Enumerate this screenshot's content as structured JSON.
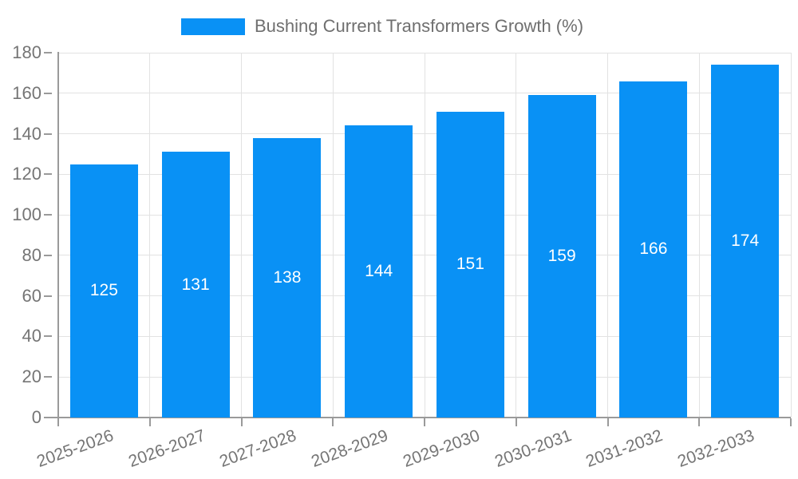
{
  "chart_data": {
    "type": "bar",
    "legend": "Bushing Current Transformers Growth (%)",
    "categories": [
      "2025-2026",
      "2026-2027",
      "2027-2028",
      "2028-2029",
      "2029-2030",
      "2030-2031",
      "2031-2032",
      "2032-2033"
    ],
    "values": [
      125,
      131,
      138,
      144,
      151,
      159,
      166,
      174
    ],
    "ylim": [
      0,
      180
    ],
    "yticks": [
      0,
      20,
      40,
      60,
      80,
      100,
      120,
      140,
      160,
      180
    ],
    "grid": true,
    "legend_position": "top-center",
    "value_label_position": "inside-middle",
    "x_label_rotation_deg": -20,
    "colors": {
      "bar": "#0991f5",
      "value_label": "#ffffff",
      "tick_text": "#757575",
      "legend_text": "#6f6f6f",
      "axis_line": "#9a9a9a",
      "grid_line": "#e2e2e2",
      "background": "#ffffff"
    }
  }
}
